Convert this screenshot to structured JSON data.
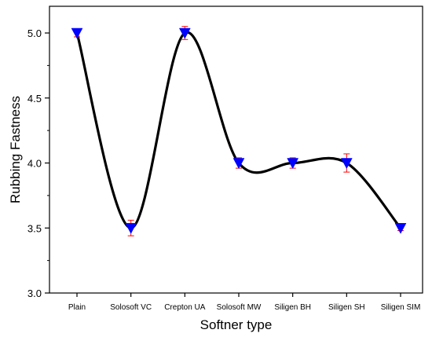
{
  "chart_data": {
    "type": "line",
    "title": "",
    "xlabel": "Softner type",
    "ylabel": "Rubbing Fastness",
    "categories": [
      "Plain",
      "Solosoft VC",
      "Crepton UA",
      "Solosoft MW",
      "Siligen BH",
      "Siligen SH",
      "Siligen SIM"
    ],
    "series": [
      {
        "values": [
          5.0,
          3.5,
          5.0,
          4.0,
          4.0,
          4.0,
          3.5
        ],
        "error": [
          0.03,
          0.06,
          0.05,
          0.04,
          0.04,
          0.07,
          0.02
        ],
        "marker": "triangle-down",
        "marker_color": "#0000ff",
        "line_color": "#000000",
        "error_color": "#ff0000",
        "smoothed": true
      }
    ],
    "ylim": [
      3.0,
      5.0
    ],
    "yticks": [
      "3.0",
      "3.5",
      "4.0",
      "4.5",
      "5.0"
    ],
    "grid": false,
    "legend": "none"
  }
}
